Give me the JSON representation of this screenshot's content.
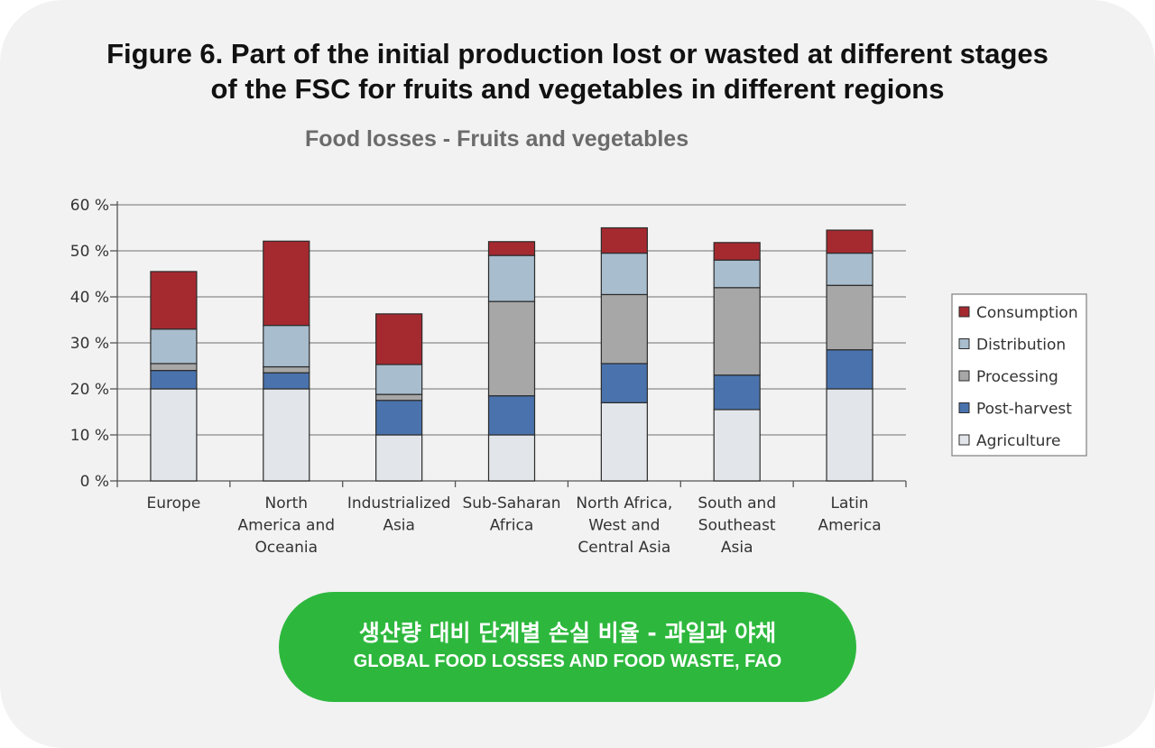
{
  "figure": {
    "title_line1": "Figure 6. Part of the initial production lost or wasted at different stages",
    "title_line2": "of the FSC for fruits and vegetables in different regions"
  },
  "badge": {
    "korean_title": "생산량 대비 단계별 손실 비율 - 과일과 야채",
    "source": "GLOBAL FOOD LOSSES AND FOOD WASTE, FAO"
  },
  "chart_data": {
    "type": "bar",
    "stacked": true,
    "title": "Food losses - Fruits and vegetables",
    "xlabel": "",
    "ylabel": "",
    "ylim": [
      0,
      60
    ],
    "yticks": [
      "0 %",
      "10 %",
      "20 %",
      "30 %",
      "40 %",
      "50 %",
      "60 %"
    ],
    "grid": true,
    "legend_position": "right",
    "categories": [
      [
        "Europe"
      ],
      [
        "North",
        "America and",
        "Oceania"
      ],
      [
        "Industrialized",
        "Asia"
      ],
      [
        "Sub-Saharan",
        "Africa"
      ],
      [
        "North Africa,",
        "West and",
        "Central Asia"
      ],
      [
        "South and",
        "Southeast",
        "Asia"
      ],
      [
        "Latin",
        "America"
      ]
    ],
    "series": [
      {
        "name": "Agriculture",
        "color": "#e2e6ea",
        "values": [
          20,
          20,
          10,
          10,
          17,
          15.5,
          20
        ]
      },
      {
        "name": "Post-harvest",
        "color": "#4a73ad",
        "values": [
          4,
          3.5,
          7.5,
          8.5,
          8.5,
          7.5,
          8.5
        ]
      },
      {
        "name": "Processing",
        "color": "#a7a7a7",
        "values": [
          1.5,
          1.3,
          1.3,
          20.5,
          15,
          19,
          14
        ]
      },
      {
        "name": "Distribution",
        "color": "#a8bdcd",
        "values": [
          7.5,
          9,
          6.5,
          10,
          9,
          6,
          7
        ]
      },
      {
        "name": "Consumption",
        "color": "#a52a30",
        "values": [
          12.5,
          18.3,
          11,
          3,
          5.5,
          3.8,
          5
        ]
      }
    ],
    "legend_order": [
      "Consumption",
      "Distribution",
      "Processing",
      "Post-harvest",
      "Agriculture"
    ]
  }
}
